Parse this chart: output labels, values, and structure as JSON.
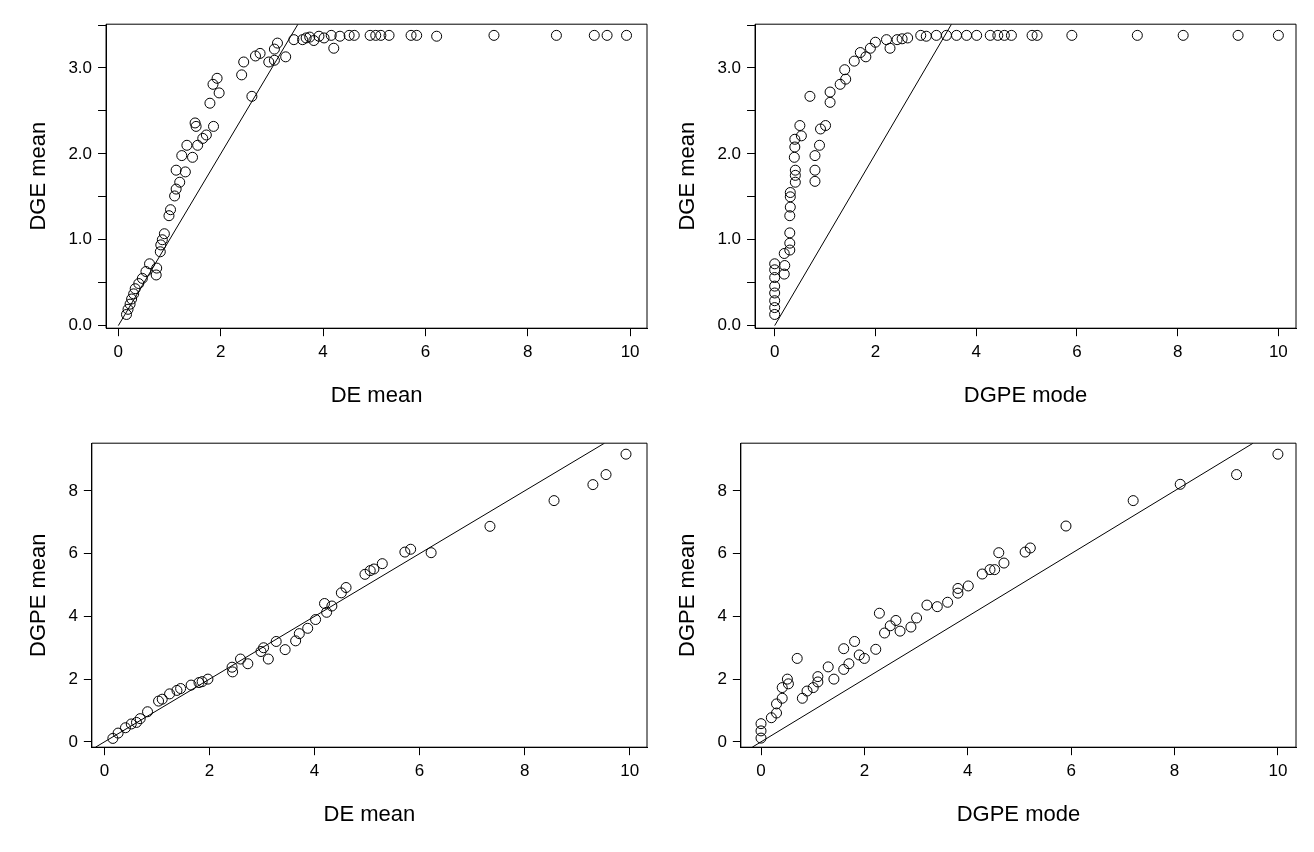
{
  "chart_data": [
    {
      "type": "scatter",
      "xlabel": "DE mean",
      "ylabel": "DGE mean",
      "marker": "circle",
      "grid": false,
      "xlim": [
        -0.24,
        10.33
      ],
      "ylim": [
        -0.03,
        3.51
      ],
      "xticks": [
        0,
        2,
        4,
        6,
        8,
        10
      ],
      "yticks": [
        {
          "value": 0,
          "label": "0.0"
        },
        {
          "value": 0.5,
          "label": null
        },
        {
          "value": 1,
          "label": "1.0"
        },
        {
          "value": 1.5,
          "label": null
        },
        {
          "value": 2,
          "label": "2.0"
        },
        {
          "value": 2.5,
          "label": null
        },
        {
          "value": 3,
          "label": "3.0"
        },
        {
          "value": 3.5,
          "label": null
        }
      ],
      "series": [
        {
          "color": "#000000",
          "x": [
            0.16,
            0.19,
            0.23,
            0.26,
            0.3,
            0.33,
            0.4,
            0.47,
            0.54,
            0.61,
            0.75,
            0.74,
            0.82,
            0.83,
            0.86,
            0.9,
            0.99,
            1.02,
            1.1,
            1.13,
            1.2,
            1.31,
            1.13,
            1.24,
            1.34,
            1.45,
            1.55,
            1.65,
            1.72,
            1.52,
            1.5,
            1.86,
            1.79,
            1.85,
            1.93,
            1.97,
            2.41,
            2.45,
            2.61,
            2.68,
            2.77,
            2.94,
            3.05,
            3.05,
            3.11,
            3.27,
            3.43,
            3.6,
            3.67,
            3.74,
            3.82,
            3.92,
            4.02,
            4.16,
            4.21,
            4.33,
            4.51,
            4.61,
            4.92,
            5.03,
            5.13,
            5.29,
            5.72,
            5.83,
            6.22,
            7.34,
            8.56,
            9.3,
            9.55,
            9.93
          ],
          "values": [
            0.13,
            0.19,
            0.25,
            0.31,
            0.37,
            0.43,
            0.49,
            0.55,
            0.63,
            0.72,
            0.67,
            0.59,
            0.86,
            0.94,
            1.0,
            1.07,
            1.28,
            1.35,
            1.51,
            1.59,
            1.67,
            1.79,
            1.81,
            1.98,
            2.1,
            1.96,
            2.1,
            2.18,
            2.22,
            2.32,
            2.36,
            2.32,
            2.59,
            2.81,
            2.88,
            2.71,
            2.92,
            3.07,
            2.67,
            3.14,
            3.17,
            3.07,
            3.09,
            3.22,
            3.29,
            3.13,
            3.33,
            3.33,
            3.35,
            3.36,
            3.32,
            3.37,
            3.35,
            3.38,
            3.23,
            3.37,
            3.38,
            3.38,
            3.38,
            3.38,
            3.38,
            3.38,
            3.38,
            3.38,
            3.37,
            3.38,
            3.38,
            3.38,
            3.38,
            3.38
          ]
        },
        {
          "type": "line",
          "marker": "none",
          "color": "#000000",
          "x": [
            0,
            3.51
          ],
          "values": [
            0,
            3.51
          ]
        }
      ]
    },
    {
      "type": "scatter",
      "xlabel": "DGPE mode",
      "ylabel": "DGE mean",
      "marker": "circle",
      "grid": false,
      "xlim": [
        -0.39,
        10.35
      ],
      "ylim": [
        -0.03,
        3.51
      ],
      "xticks": [
        0,
        2,
        4,
        6,
        8,
        10
      ],
      "yticks": [
        {
          "value": 0,
          "label": "0.0"
        },
        {
          "value": 0.5,
          "label": null
        },
        {
          "value": 1,
          "label": "1.0"
        },
        {
          "value": 1.5,
          "label": null
        },
        {
          "value": 2,
          "label": "2.0"
        },
        {
          "value": 2.5,
          "label": null
        },
        {
          "value": 3,
          "label": "3.0"
        },
        {
          "value": 3.5,
          "label": null
        }
      ],
      "series": [
        {
          "color": "#000000",
          "x": [
            0,
            0,
            0,
            0,
            0,
            0,
            0,
            0,
            0.19,
            0.2,
            0.19,
            0.3,
            0.3,
            0.3,
            0.3,
            0.31,
            0.31,
            0.31,
            0.41,
            0.41,
            0.41,
            0.39,
            0.4,
            0.4,
            0.5,
            0.53,
            0.7,
            0.8,
            0.8,
            0.8,
            0.89,
            0.91,
            1.01,
            1.1,
            1.1,
            1.3,
            1.41,
            1.39,
            1.58,
            1.7,
            1.81,
            1.9,
            2.0,
            2.22,
            2.29,
            2.43,
            2.53,
            2.64,
            2.9,
            3.01,
            3.21,
            3.41,
            3.61,
            3.81,
            4.01,
            4.28,
            4.43,
            4.56,
            4.7,
            5.11,
            5.21,
            5.9,
            7.2,
            8.11,
            9.2,
            10.0
          ],
          "values": [
            0.13,
            0.21,
            0.29,
            0.38,
            0.46,
            0.56,
            0.65,
            0.72,
            0.6,
            0.7,
            0.84,
            0.88,
            0.96,
            1.08,
            1.28,
            1.38,
            1.5,
            1.55,
            1.67,
            1.75,
            1.81,
            1.96,
            2.08,
            2.17,
            2.33,
            2.21,
            2.67,
            1.68,
            1.81,
            1.98,
            2.1,
            2.29,
            2.33,
            2.6,
            2.72,
            2.81,
            2.87,
            2.98,
            3.08,
            3.18,
            3.13,
            3.23,
            3.3,
            3.33,
            3.23,
            3.33,
            3.34,
            3.35,
            3.38,
            3.37,
            3.38,
            3.38,
            3.38,
            3.38,
            3.38,
            3.38,
            3.38,
            3.38,
            3.38,
            3.38,
            3.38,
            3.38,
            3.38,
            3.38,
            3.38,
            3.38
          ]
        },
        {
          "type": "line",
          "marker": "none",
          "color": "#000000",
          "x": [
            0,
            3.51
          ],
          "values": [
            0,
            3.51
          ]
        }
      ]
    },
    {
      "type": "scatter",
      "xlabel": "DE mean",
      "ylabel": "DGPE mean",
      "marker": "circle",
      "grid": false,
      "xlim": [
        -0.24,
        10.33
      ],
      "ylim": [
        -0.17,
        9.52
      ],
      "xticks": [
        0,
        2,
        4,
        6,
        8,
        10
      ],
      "yticks": [
        0,
        2,
        4,
        6,
        8
      ],
      "series": [
        {
          "color": "#000000",
          "x": [
            0.16,
            0.26,
            0.4,
            0.51,
            0.61,
            0.68,
            0.82,
            1.03,
            1.1,
            1.24,
            1.38,
            1.45,
            1.65,
            1.8,
            1.86,
            1.97,
            2.43,
            2.44,
            2.59,
            2.73,
            2.98,
            3.03,
            3.12,
            3.27,
            3.44,
            3.64,
            3.71,
            3.87,
            4.02,
            4.19,
            4.23,
            4.33,
            4.51,
            4.6,
            4.96,
            5.06,
            5.13,
            5.29,
            5.72,
            5.83,
            6.22,
            7.34,
            8.56,
            9.3,
            9.55,
            9.93
          ],
          "values": [
            0.11,
            0.28,
            0.45,
            0.57,
            0.62,
            0.74,
            0.96,
            1.3,
            1.36,
            1.53,
            1.64,
            1.7,
            1.81,
            1.89,
            1.92,
            2.0,
            2.38,
            2.23,
            2.64,
            2.49,
            2.88,
            3.0,
            2.64,
            3.2,
            2.94,
            3.22,
            3.45,
            3.62,
            3.9,
            4.41,
            4.13,
            4.33,
            4.75,
            4.92,
            5.34,
            5.46,
            5.51,
            5.68,
            6.05,
            6.14,
            6.03,
            6.87,
            7.69,
            8.2,
            8.52,
            9.17
          ]
        },
        {
          "type": "line",
          "marker": "none",
          "color": "#000000",
          "x": [
            -0.17,
            9.52
          ],
          "values": [
            -0.17,
            9.52
          ]
        }
      ]
    },
    {
      "type": "scatter",
      "xlabel": "DGPE mode",
      "ylabel": "DGPE mean",
      "marker": "circle",
      "grid": false,
      "xlim": [
        -0.39,
        10.35
      ],
      "ylim": [
        -0.17,
        9.52
      ],
      "xticks": [
        0,
        2,
        4,
        6,
        8,
        10
      ],
      "yticks": [
        0,
        2,
        4,
        6,
        8
      ],
      "series": [
        {
          "color": "#000000",
          "x": [
            0,
            0,
            0,
            0.2,
            0.3,
            0.3,
            0.41,
            0.41,
            0.51,
            0.53,
            0.7,
            0.8,
            0.89,
            1.01,
            1.1,
            1.1,
            1.3,
            1.41,
            1.6,
            1.6,
            1.7,
            1.81,
            1.9,
            2.0,
            2.22,
            2.29,
            2.39,
            2.5,
            2.61,
            2.69,
            2.9,
            3.01,
            3.21,
            3.41,
            3.61,
            3.81,
            3.81,
            4.01,
            4.28,
            4.43,
            4.52,
            4.6,
            4.7,
            5.11,
            5.21,
            5.9,
            7.2,
            8.11,
            9.2,
            10.0
          ],
          "values": [
            0.12,
            0.35,
            0.58,
            0.77,
            0.92,
            1.21,
            1.39,
            1.73,
            2.0,
            1.85,
            2.66,
            1.39,
            1.62,
            1.73,
            2.08,
            1.91,
            2.39,
            2.0,
            2.31,
            2.97,
            2.49,
            3.2,
            2.77,
            2.66,
            2.95,
            4.1,
            3.47,
            3.7,
            3.87,
            3.53,
            3.66,
            3.95,
            4.36,
            4.31,
            4.45,
            4.74,
            4.89,
            4.97,
            5.35,
            5.49,
            5.49,
            6.03,
            5.7,
            6.05,
            6.18,
            6.88,
            7.69,
            8.21,
            8.52,
            9.17
          ]
        },
        {
          "type": "line",
          "marker": "none",
          "color": "#000000",
          "x": [
            -0.17,
            9.52
          ],
          "values": [
            -0.17,
            9.52
          ]
        }
      ]
    }
  ]
}
